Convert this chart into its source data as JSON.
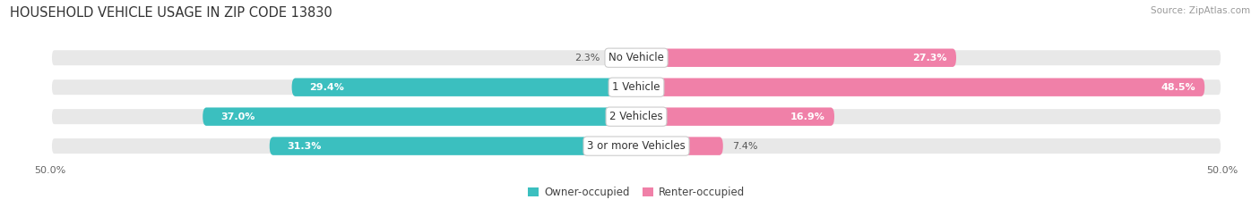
{
  "title": "HOUSEHOLD VEHICLE USAGE IN ZIP CODE 13830",
  "source": "Source: ZipAtlas.com",
  "categories": [
    "No Vehicle",
    "1 Vehicle",
    "2 Vehicles",
    "3 or more Vehicles"
  ],
  "owner_values": [
    2.3,
    29.4,
    37.0,
    31.3
  ],
  "renter_values": [
    27.3,
    48.5,
    16.9,
    7.4
  ],
  "owner_color": "#3BBFBF",
  "renter_color": "#F080A8",
  "bar_bg_color": "#E8E8E8",
  "axis_max": 50.0,
  "legend_owner": "Owner-occupied",
  "legend_renter": "Renter-occupied",
  "bar_height": 0.62,
  "title_fontsize": 10.5,
  "label_fontsize": 8.0,
  "tick_fontsize": 8.0,
  "source_fontsize": 7.5,
  "background_color": "#FFFFFF",
  "owner_label_inside_threshold": 10.0,
  "renter_label_inside_threshold": 10.0
}
